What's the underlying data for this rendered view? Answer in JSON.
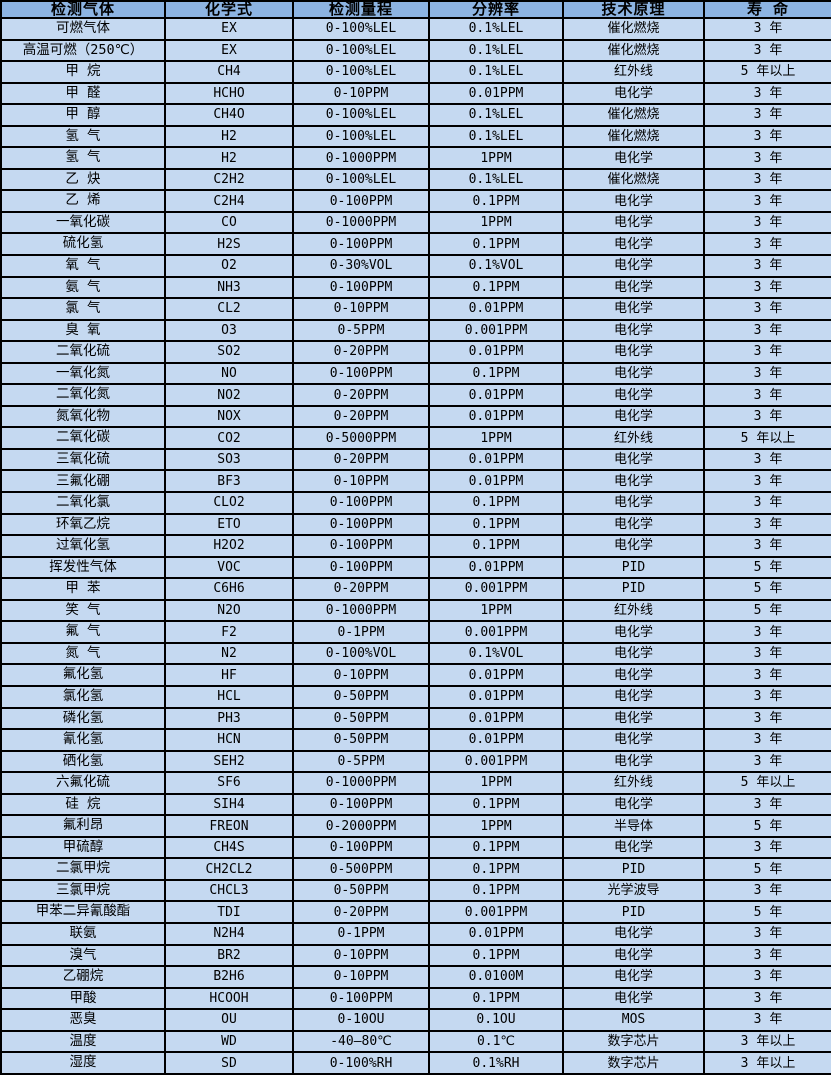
{
  "table": {
    "colors": {
      "header_bg": "#8DB4E2",
      "row_bg": "#C5D9F1",
      "border": "#000000",
      "text": "#000000"
    },
    "columns": [
      "检测气体",
      "化学式",
      "检测量程",
      "分辨率",
      "技术原理",
      "寿 命"
    ],
    "rows": [
      [
        "可燃气体",
        "EX",
        "0-100%LEL",
        "0.1%LEL",
        "催化燃烧",
        "3 年"
      ],
      [
        "高温可燃（250℃）",
        "EX",
        "0-100%LEL",
        "0.1%LEL",
        "催化燃烧",
        "3 年"
      ],
      [
        "甲 烷",
        "CH4",
        "0-100%LEL",
        "0.1%LEL",
        "红外线",
        "5 年以上"
      ],
      [
        "甲 醛",
        "HCHO",
        "0-10PPM",
        "0.01PPM",
        "电化学",
        "3 年"
      ],
      [
        "甲 醇",
        "CH4O",
        "0-100%LEL",
        "0.1%LEL",
        "催化燃烧",
        "3 年"
      ],
      [
        "氢 气",
        "H2",
        "0-100%LEL",
        "0.1%LEL",
        "催化燃烧",
        "3 年"
      ],
      [
        "氢 气",
        "H2",
        "0-1000PPM",
        "1PPM",
        "电化学",
        "3 年"
      ],
      [
        "乙 炔",
        "C2H2",
        "0-100%LEL",
        "0.1%LEL",
        "催化燃烧",
        "3 年"
      ],
      [
        "乙 烯",
        "C2H4",
        "0-100PPM",
        "0.1PPM",
        "电化学",
        "3 年"
      ],
      [
        "一氧化碳",
        "CO",
        "0-1000PPM",
        "1PPM",
        "电化学",
        "3 年"
      ],
      [
        "硫化氢",
        "H2S",
        "0-100PPM",
        "0.1PPM",
        "电化学",
        "3 年"
      ],
      [
        "氧 气",
        "O2",
        "0-30%VOL",
        "0.1%VOL",
        "电化学",
        "3 年"
      ],
      [
        "氨 气",
        "NH3",
        "0-100PPM",
        "0.1PPM",
        "电化学",
        "3 年"
      ],
      [
        "氯 气",
        "CL2",
        "0-10PPM",
        "0.01PPM",
        "电化学",
        "3 年"
      ],
      [
        "臭 氧",
        "O3",
        "0-5PPM",
        "0.001PPM",
        "电化学",
        "3 年"
      ],
      [
        "二氧化硫",
        "SO2",
        "0-20PPM",
        "0.01PPM",
        "电化学",
        "3 年"
      ],
      [
        "一氧化氮",
        "NO",
        "0-100PPM",
        "0.1PPM",
        "电化学",
        "3 年"
      ],
      [
        "二氧化氮",
        "NO2",
        "0-20PPM",
        "0.01PPM",
        "电化学",
        "3 年"
      ],
      [
        "氮氧化物",
        "NOX",
        "0-20PPM",
        "0.01PPM",
        "电化学",
        "3 年"
      ],
      [
        "二氧化碳",
        "CO2",
        "0-5000PPM",
        "1PPM",
        "红外线",
        "5 年以上"
      ],
      [
        "三氧化硫",
        "SO3",
        "0-20PPM",
        "0.01PPM",
        "电化学",
        "3 年"
      ],
      [
        "三氟化硼",
        "BF3",
        "0-10PPM",
        "0.01PPM",
        "电化学",
        "3 年"
      ],
      [
        "二氧化氯",
        "CLO2",
        "0-100PPM",
        "0.1PPM",
        "电化学",
        "3 年"
      ],
      [
        "环氧乙烷",
        "ETO",
        "0-100PPM",
        "0.1PPM",
        "电化学",
        "3 年"
      ],
      [
        "过氧化氢",
        "H2O2",
        "0-100PPM",
        "0.1PPM",
        "电化学",
        "3 年"
      ],
      [
        "挥发性气体",
        "VOC",
        "0-100PPM",
        "0.01PPM",
        "PID",
        "5 年"
      ],
      [
        "甲 苯",
        "C6H6",
        "0-20PPM",
        "0.001PPM",
        "PID",
        "5 年"
      ],
      [
        "笑 气",
        "N2O",
        "0-1000PPM",
        "1PPM",
        "红外线",
        "5 年"
      ],
      [
        "氟 气",
        "F2",
        "0-1PPM",
        "0.001PPM",
        "电化学",
        "3 年"
      ],
      [
        "氮 气",
        "N2",
        "0-100%VOL",
        "0.1%VOL",
        "电化学",
        "3 年"
      ],
      [
        "氟化氢",
        "HF",
        "0-10PPM",
        "0.01PPM",
        "电化学",
        "3 年"
      ],
      [
        "氯化氢",
        "HCL",
        "0-50PPM",
        "0.01PPM",
        "电化学",
        "3 年"
      ],
      [
        "磷化氢",
        "PH3",
        "0-50PPM",
        "0.01PPM",
        "电化学",
        "3 年"
      ],
      [
        "氰化氢",
        "HCN",
        "0-50PPM",
        "0.01PPM",
        "电化学",
        "3 年"
      ],
      [
        "硒化氢",
        "SEH2",
        "0-5PPM",
        "0.001PPM",
        "电化学",
        "3 年"
      ],
      [
        "六氟化硫",
        "SF6",
        "0-1000PPM",
        "1PPM",
        "红外线",
        "5 年以上"
      ],
      [
        "硅 烷",
        "SIH4",
        "0-100PPM",
        "0.1PPM",
        "电化学",
        "3 年"
      ],
      [
        "氟利昂",
        "FREON",
        "0-2000PPM",
        "1PPM",
        "半导体",
        "5 年"
      ],
      [
        "甲硫醇",
        "CH4S",
        "0-100PPM",
        "0.1PPM",
        "电化学",
        "3 年"
      ],
      [
        "二氯甲烷",
        "CH2CL2",
        "0-500PPM",
        "0.1PPM",
        "PID",
        "5 年"
      ],
      [
        "三氯甲烷",
        "CHCL3",
        "0-50PPM",
        "0.1PPM",
        "光学波导",
        "3 年"
      ],
      [
        "甲苯二异氰酸酯",
        "TDI",
        "0-20PPM",
        "0.001PPM",
        "PID",
        "5 年"
      ],
      [
        "联氨",
        "N2H4",
        "0-1PPM",
        "0.01PPM",
        "电化学",
        "3 年"
      ],
      [
        "溴气",
        "BR2",
        "0-10PPM",
        "0.1PPM",
        "电化学",
        "3 年"
      ],
      [
        "乙硼烷",
        "B2H6",
        "0-10PPM",
        "0.0100M",
        "电化学",
        "3 年"
      ],
      [
        "甲酸",
        "HCOOH",
        "0-100PPM",
        "0.1PPM",
        "电化学",
        "3 年"
      ],
      [
        "恶臭",
        "OU",
        "0-10OU",
        "0.1OU",
        "MOS",
        "3 年"
      ],
      [
        "温度",
        "WD",
        "-40—80℃",
        "0.1℃",
        "数字芯片",
        "3 年以上"
      ],
      [
        "湿度",
        "SD",
        "0-100%RH",
        "0.1%RH",
        "数字芯片",
        "3 年以上"
      ]
    ]
  }
}
